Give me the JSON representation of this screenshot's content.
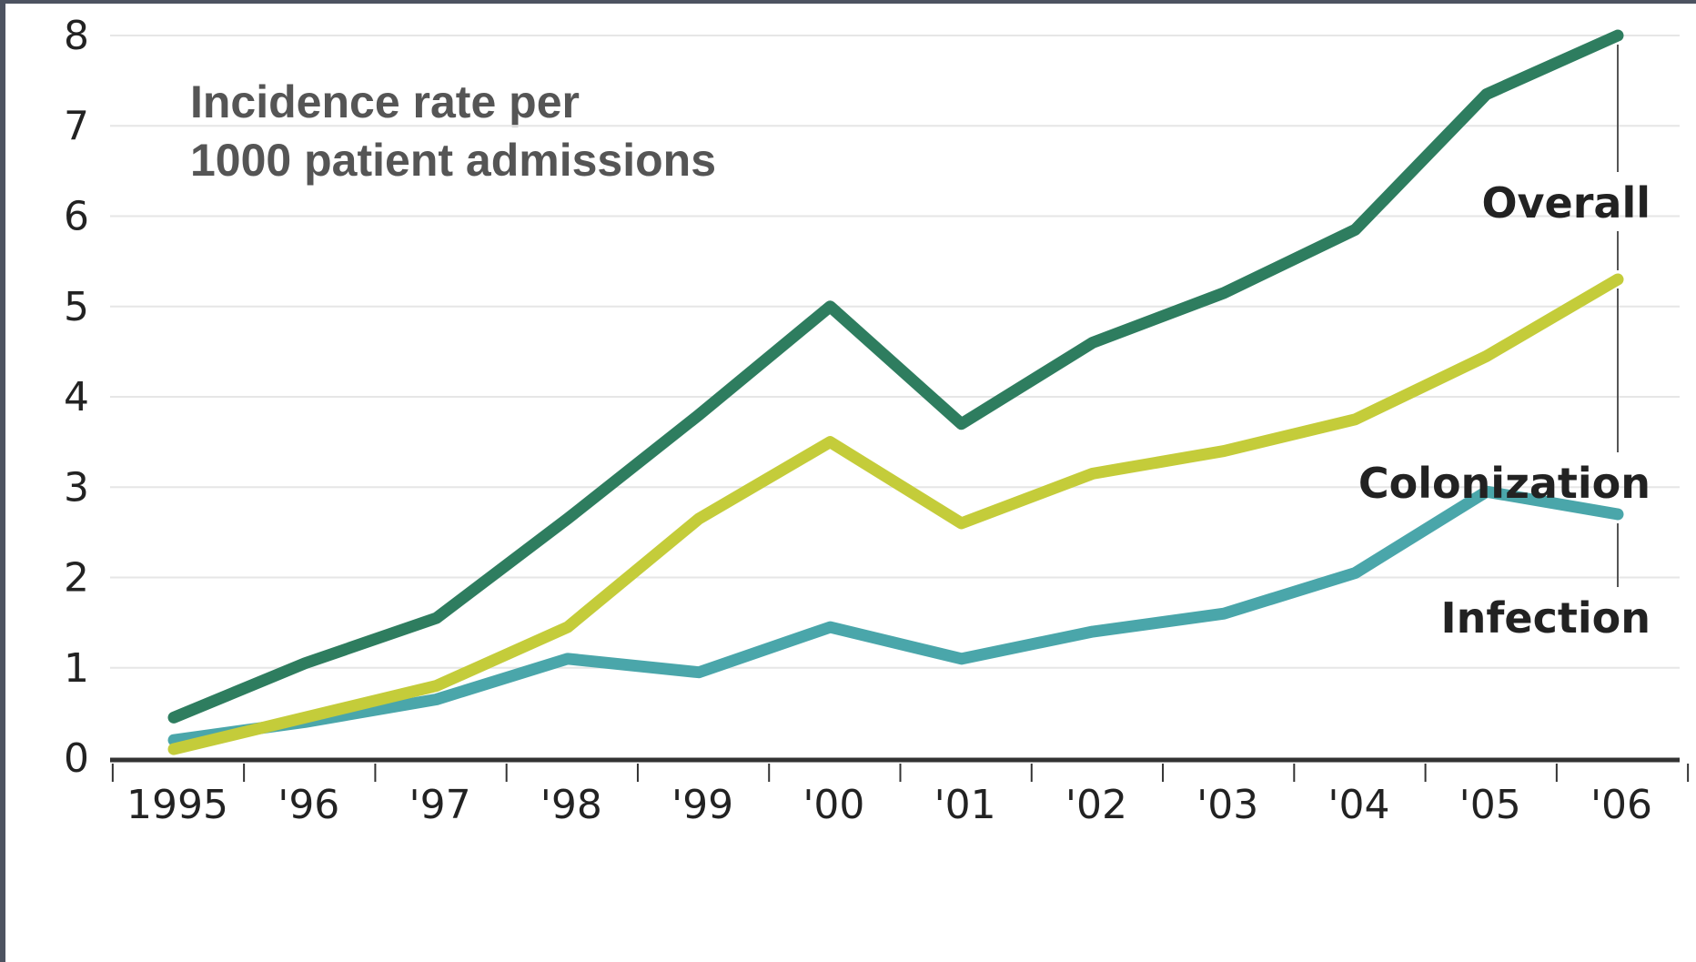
{
  "chart_data": {
    "type": "line",
    "title": "",
    "xlabel": "",
    "ylabel_lines": [
      "Incidence rate per",
      "1000 patient admissions"
    ],
    "categories": [
      "1995",
      "'96",
      "'97",
      "'98",
      "'99",
      "'00",
      "'01",
      "'02",
      "'03",
      "'04",
      "'05",
      "'06"
    ],
    "ylim": [
      0,
      8
    ],
    "yticks": [
      "0",
      "1",
      "2",
      "3",
      "4",
      "5",
      "6",
      "7",
      "8"
    ],
    "grid": "horizontal",
    "legend": "inline labels at right end of lines",
    "series": [
      {
        "name": "Overall",
        "color": "#2e7d5f",
        "values": [
          0.45,
          1.05,
          1.55,
          2.65,
          3.8,
          5.0,
          3.7,
          4.6,
          5.15,
          5.85,
          7.35,
          8.0
        ]
      },
      {
        "name": "Colonization",
        "color": "#c4cc3a",
        "values": [
          0.1,
          0.45,
          0.8,
          1.45,
          2.65,
          3.5,
          2.6,
          3.15,
          3.4,
          3.75,
          4.45,
          5.3
        ]
      },
      {
        "name": "Infection",
        "color": "#4aa6aa",
        "values": [
          0.2,
          0.4,
          0.65,
          1.1,
          0.95,
          1.45,
          1.1,
          1.4,
          1.6,
          2.05,
          2.95,
          2.7
        ]
      }
    ]
  }
}
